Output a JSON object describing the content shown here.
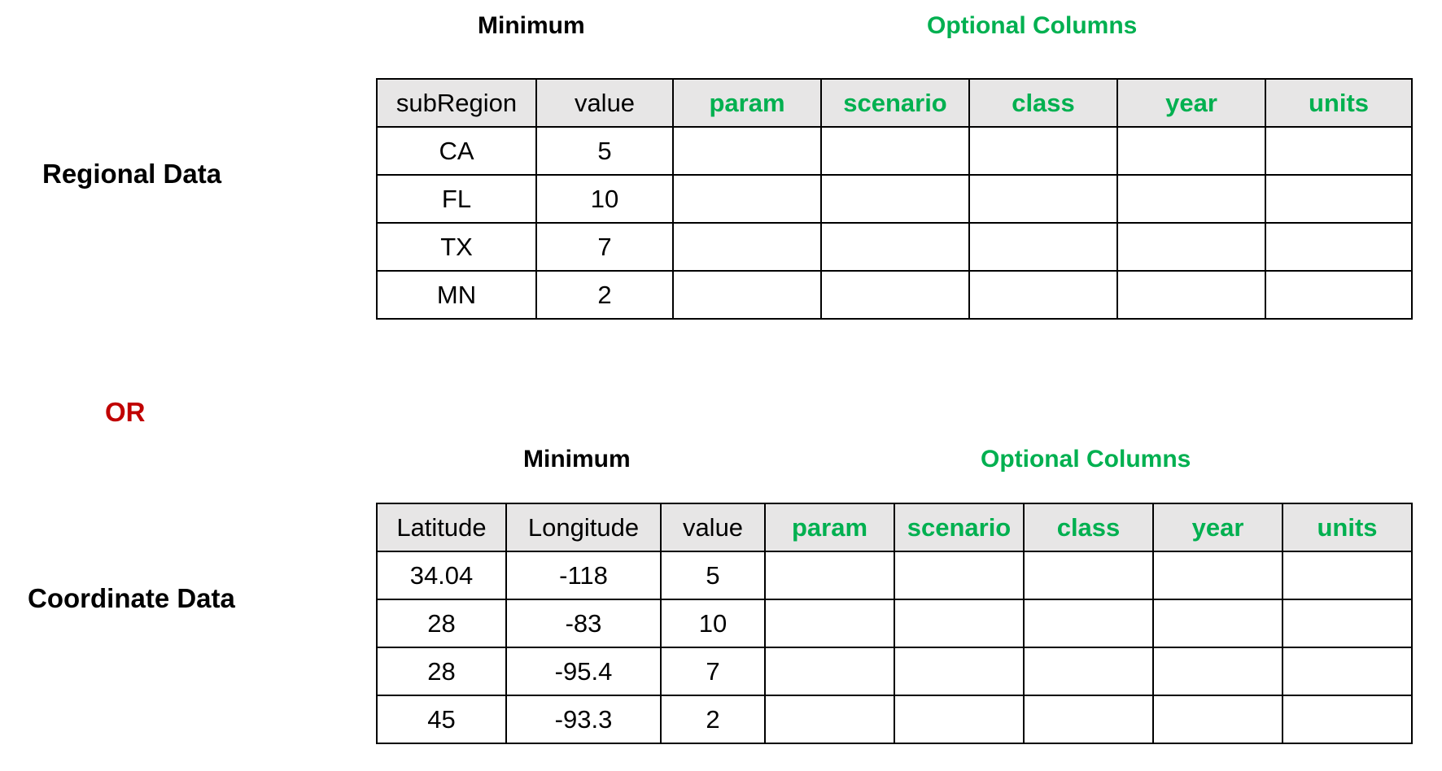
{
  "regional": {
    "side_label": "Regional Data",
    "minimum_label": "Minimum",
    "optional_label": "Optional Columns",
    "min_headers": [
      "subRegion",
      "value"
    ],
    "opt_headers": [
      "param",
      "scenario",
      "class",
      "year",
      "units"
    ],
    "rows": [
      [
        "CA",
        "5"
      ],
      [
        "FL",
        "10"
      ],
      [
        "TX",
        "7"
      ],
      [
        "MN",
        "2"
      ]
    ]
  },
  "or_label": "OR",
  "coordinate": {
    "side_label": "Coordinate Data",
    "minimum_label": "Minimum",
    "optional_label": "Optional Columns",
    "min_headers": [
      "Latitude",
      "Longitude",
      "value"
    ],
    "opt_headers": [
      "param",
      "scenario",
      "class",
      "year",
      "units"
    ],
    "rows": [
      [
        "34.04",
        "-118",
        "5"
      ],
      [
        "28",
        "-83",
        "10"
      ],
      [
        "28",
        "-95.4",
        "7"
      ],
      [
        "45",
        "-93.3",
        "2"
      ]
    ]
  },
  "colors": {
    "optional_green": "#00b050",
    "or_red": "#c00000",
    "header_gray": "#e7e6e6"
  }
}
